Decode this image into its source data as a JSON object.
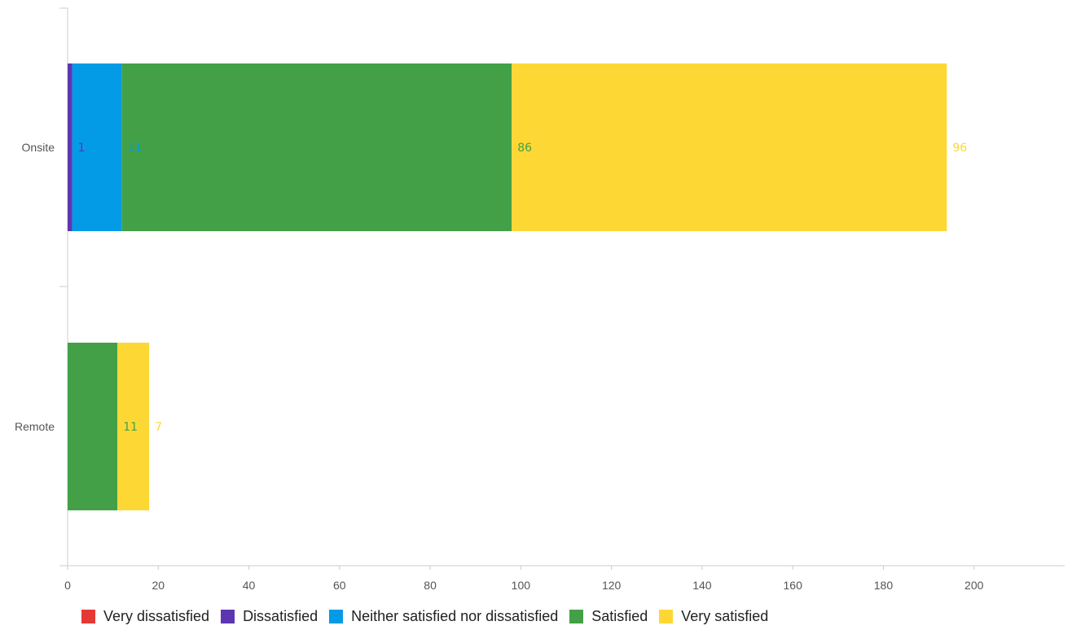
{
  "chart_data": {
    "type": "bar",
    "orientation": "horizontal",
    "stacked": true,
    "categories": [
      "Onsite",
      "Remote"
    ],
    "series": [
      {
        "name": "Very dissatisfied",
        "color": "#e53935",
        "values": [
          0,
          0
        ],
        "labels": [
          "",
          ""
        ]
      },
      {
        "name": "Dissatisfied",
        "color": "#5e35b1",
        "values": [
          1,
          0
        ],
        "labels": [
          "1",
          ""
        ]
      },
      {
        "name": "Neither satisfied nor dissatisfied",
        "color": "#039be5",
        "values": [
          11,
          0
        ],
        "labels": [
          "11",
          ""
        ]
      },
      {
        "name": "Satisfied",
        "color": "#43a047",
        "values": [
          86,
          11
        ],
        "labels": [
          "86",
          "11"
        ]
      },
      {
        "name": "Very satisfied",
        "color": "#fdd835",
        "values": [
          96,
          7
        ],
        "labels": [
          "96",
          "7"
        ]
      }
    ],
    "xlim": [
      0,
      220
    ],
    "xticks": [
      "0",
      "20",
      "40",
      "60",
      "80",
      "100",
      "120",
      "140",
      "160",
      "180",
      "200"
    ],
    "title": "",
    "xlabel": "",
    "ylabel": "",
    "grid": false,
    "legend_position": "bottom"
  }
}
